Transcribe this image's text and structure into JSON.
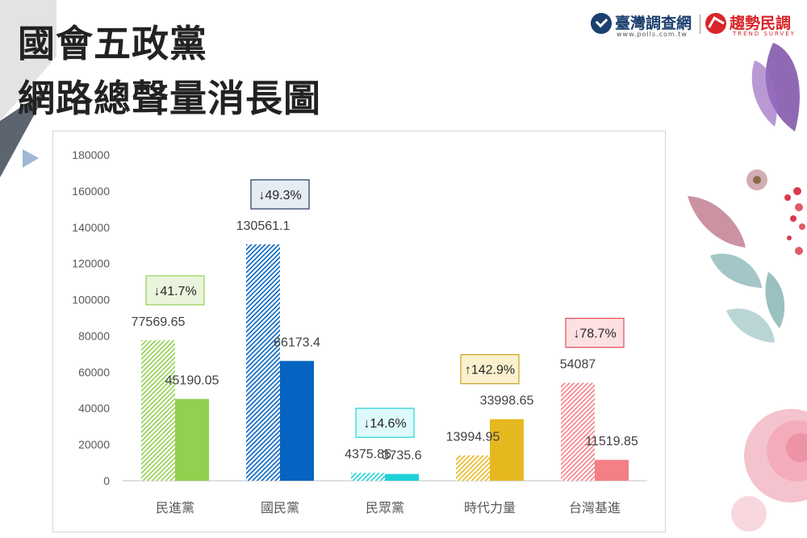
{
  "page": {
    "title_line1": "國會五政黨",
    "title_line2": "網路總聲量消長圖"
  },
  "logos": {
    "logo1_name": "臺灣調查網",
    "logo1_url": "www.polls.com.tw",
    "logo2_name": "趨勢民調",
    "logo2_sub": "TREND SURVEY"
  },
  "chart_data": {
    "type": "bar",
    "categories": [
      "民進黨",
      "國民黨",
      "民眾黨",
      "時代力量",
      "台灣基進"
    ],
    "series": [
      {
        "values": [
          77569.65,
          130561.1,
          4375.85,
          13994.95,
          54087
        ],
        "pattern": "hatched-light"
      },
      {
        "values": [
          45190.05,
          66173.4,
          3735.6,
          33998.65,
          11519.85
        ],
        "pattern": "solid"
      }
    ],
    "value_labels": [
      [
        "77569.65",
        "130561.1",
        "4375.85",
        "13994.95",
        "54087"
      ],
      [
        "45190.05",
        "66173.4",
        "3735.6",
        "33998.65",
        "11519.85"
      ]
    ],
    "colors": [
      "#92d050",
      "#0563c1",
      "#1fd1d8",
      "#e6b820",
      "#f47f86"
    ],
    "change_labels": [
      "↓41.7%",
      "↓49.3%",
      "↓14.6%",
      "↑142.9%",
      "↓78.7%"
    ],
    "change_box_colors": [
      {
        "fill": "#eaf4dc",
        "stroke": "#92d050"
      },
      {
        "fill": "#e6ecf4",
        "stroke": "#1f3864"
      },
      {
        "fill": "#defafa",
        "stroke": "#1fd1d8"
      },
      {
        "fill": "#fcf1cf",
        "stroke": "#c9a21a"
      },
      {
        "fill": "#fde0e2",
        "stroke": "#e24d59"
      }
    ],
    "y_ticks": [
      "0",
      "20000",
      "40000",
      "60000",
      "80000",
      "100000",
      "120000",
      "140000",
      "160000",
      "180000"
    ],
    "ylim": [
      0,
      180000
    ],
    "grid": false,
    "legend": "none"
  }
}
